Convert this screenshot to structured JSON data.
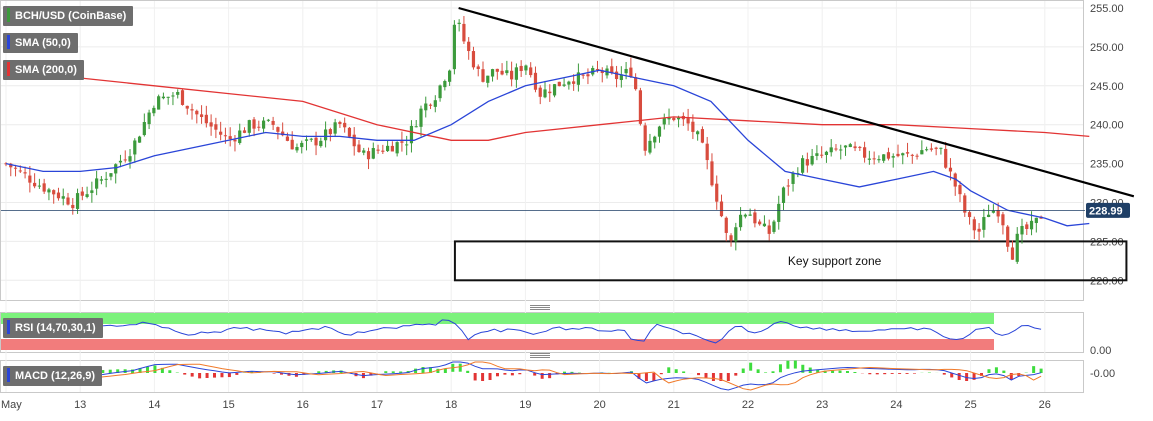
{
  "legend": {
    "pair": "BCH/USD (CoinBase)",
    "sma50": "SMA (50,0)",
    "sma200": "SMA (200,0)",
    "rsi": "RSI (14,70,30,1)",
    "macd": "MACD (12,26,9)"
  },
  "colors": {
    "up": "#3c9a3c",
    "down": "#d84c3e",
    "sma50": "#2a45d8",
    "sma200": "#e23434",
    "trendline": "#000000",
    "rsi_line": "#2a45d8",
    "rsi_overbought": "#7cf27c",
    "rsi_oversold": "#f27c7c",
    "macd_line": "#2a45d8",
    "signal_line": "#f07a2a",
    "hist_pos": "#3ddc3d",
    "hist_neg": "#e23434",
    "price_tag_bg": "#1f3f66"
  },
  "annotation": {
    "support_label": "Key support zone"
  },
  "chart_data": {
    "type": "candlestick",
    "pair": "BCH/USD (CoinBase)",
    "x_ticks": [
      "May",
      "13",
      "14",
      "15",
      "16",
      "17",
      "18",
      "19",
      "20",
      "21",
      "22",
      "23",
      "24",
      "25",
      "26"
    ],
    "ylim": [
      218,
      256
    ],
    "y_ticks": [
      "220.00",
      "225.00",
      "230.00",
      "235.00",
      "240.00",
      "245.00",
      "250.00",
      "255.00"
    ],
    "last_price": "228.99",
    "close_path": [
      [
        0,
        235
      ],
      [
        0.5,
        232
      ],
      [
        0.9,
        230
      ],
      [
        1.3,
        233
      ],
      [
        1.7,
        237
      ],
      [
        2.0,
        243
      ],
      [
        2.3,
        244
      ],
      [
        2.6,
        241
      ],
      [
        3.0,
        238
      ],
      [
        3.3,
        240
      ],
      [
        3.6,
        240
      ],
      [
        3.9,
        237
      ],
      [
        4.2,
        238
      ],
      [
        4.5,
        240
      ],
      [
        4.8,
        236
      ],
      [
        5.1,
        237
      ],
      [
        5.4,
        238
      ],
      [
        5.6,
        242
      ],
      [
        5.8,
        244
      ],
      [
        6.0,
        248
      ],
      [
        6.05,
        254
      ],
      [
        6.2,
        250
      ],
      [
        6.4,
        246
      ],
      [
        6.6,
        247
      ],
      [
        6.8,
        246
      ],
      [
        7.0,
        248
      ],
      [
        7.2,
        244
      ],
      [
        7.4,
        245
      ],
      [
        7.6,
        246
      ],
      [
        7.8,
        246
      ],
      [
        8.0,
        247
      ],
      [
        8.2,
        246
      ],
      [
        8.45,
        247
      ],
      [
        8.6,
        237
      ],
      [
        8.8,
        240
      ],
      [
        9.0,
        241
      ],
      [
        9.2,
        240
      ],
      [
        9.35,
        238
      ],
      [
        9.45,
        235
      ],
      [
        9.6,
        230
      ],
      [
        9.75,
        224
      ],
      [
        9.85,
        228
      ],
      [
        10.0,
        229
      ],
      [
        10.15,
        227
      ],
      [
        10.3,
        226
      ],
      [
        10.45,
        231
      ],
      [
        10.7,
        235
      ],
      [
        11.0,
        236
      ],
      [
        11.3,
        237
      ],
      [
        11.6,
        236
      ],
      [
        11.9,
        236
      ],
      [
        12.2,
        236
      ],
      [
        12.4,
        237
      ],
      [
        12.6,
        236.5
      ],
      [
        12.8,
        232
      ],
      [
        12.95,
        228
      ],
      [
        13.1,
        226
      ],
      [
        13.25,
        229
      ],
      [
        13.4,
        229
      ],
      [
        13.55,
        223
      ],
      [
        13.65,
        226
      ],
      [
        13.85,
        227
      ],
      [
        14.0,
        228.99
      ]
    ],
    "sma50": [
      [
        0,
        235
      ],
      [
        0.5,
        234
      ],
      [
        1,
        234
      ],
      [
        1.5,
        234.5
      ],
      [
        2,
        236
      ],
      [
        2.5,
        237
      ],
      [
        3,
        238
      ],
      [
        3.5,
        239
      ],
      [
        4,
        238.5
      ],
      [
        4.5,
        238.5
      ],
      [
        5,
        238
      ],
      [
        5.5,
        238
      ],
      [
        6,
        240
      ],
      [
        6.5,
        243
      ],
      [
        7,
        245
      ],
      [
        7.5,
        246
      ],
      [
        8,
        247
      ],
      [
        8.5,
        246
      ],
      [
        9,
        245
      ],
      [
        9.5,
        243
      ],
      [
        10,
        238
      ],
      [
        10.5,
        234
      ],
      [
        11,
        233
      ],
      [
        11.5,
        232
      ],
      [
        12,
        233
      ],
      [
        12.5,
        234
      ],
      [
        12.8,
        233
      ],
      [
        13,
        231.5
      ],
      [
        13.5,
        229
      ],
      [
        14,
        228
      ],
      [
        14.3,
        227
      ],
      [
        14.6,
        227.3
      ]
    ],
    "sma200": [
      [
        0,
        247
      ],
      [
        1,
        246
      ],
      [
        2,
        245
      ],
      [
        3,
        244
      ],
      [
        4,
        243
      ],
      [
        5,
        240
      ],
      [
        6,
        238
      ],
      [
        6.5,
        238
      ],
      [
        7,
        239
      ],
      [
        8,
        240
      ],
      [
        9,
        241
      ],
      [
        10,
        240.5
      ],
      [
        11,
        240
      ],
      [
        12,
        240
      ],
      [
        13,
        239.5
      ],
      [
        14,
        239
      ],
      [
        14.6,
        238.5
      ]
    ],
    "trendline": [
      [
        6.1,
        255
      ],
      [
        15.2,
        230.8
      ]
    ],
    "support_zone": {
      "x_from": 6.05,
      "x_to": 15.1,
      "low": 220,
      "high": 225,
      "label": "Key support zone"
    },
    "rsi": {
      "lower_label": "0.00"
    },
    "macd": {
      "zero_label": "-0.00"
    }
  }
}
